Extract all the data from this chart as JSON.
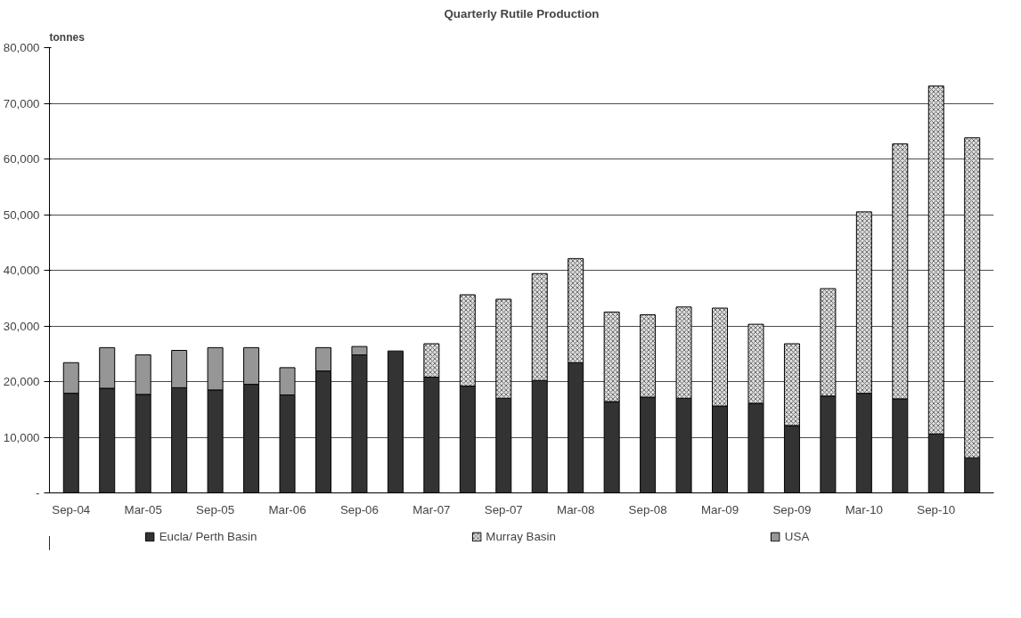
{
  "chart_data": {
    "type": "bar",
    "title": "Quarterly Rutile Production",
    "ylabel": "tonnes",
    "stacked": true,
    "categories": [
      "Sep-04",
      null,
      "Mar-05",
      null,
      "Sep-05",
      null,
      "Mar-06",
      null,
      "Sep-06",
      null,
      "Mar-07",
      null,
      "Sep-07",
      null,
      "Mar-08",
      null,
      "Sep-08",
      null,
      "Mar-09",
      null,
      "Sep-09",
      null,
      "Mar-10",
      null,
      "Sep-10",
      null
    ],
    "series": [
      {
        "name": "Eucla/ Perth Basin",
        "color": "#333333",
        "values": [
          17900,
          18800,
          17700,
          18900,
          18500,
          19500,
          17600,
          21900,
          24800,
          25500,
          20800,
          19200,
          17000,
          20200,
          23400,
          16400,
          17200,
          17000,
          15600,
          16100,
          12100,
          17400,
          17900,
          16900,
          10600,
          6300
        ]
      },
      {
        "name": "Murray Basin",
        "color": "#dddddd",
        "values": [
          null,
          null,
          null,
          null,
          null,
          null,
          null,
          null,
          null,
          null,
          6000,
          16400,
          17800,
          19200,
          18700,
          16100,
          14800,
          16400,
          17600,
          14200,
          14700,
          19300,
          32600,
          45800,
          62500,
          57500
        ]
      },
      {
        "name": "USA",
        "color": "#969696",
        "values": [
          5500,
          7300,
          7100,
          6700,
          7600,
          6600,
          4900,
          4200,
          1500,
          null,
          null,
          null,
          null,
          null,
          null,
          null,
          null,
          null,
          null,
          null,
          null,
          null,
          null,
          null,
          null,
          null
        ]
      }
    ],
    "ylim": [
      0,
      80000
    ],
    "yticks": [
      {
        "value": 0,
        "label": "-"
      },
      {
        "value": 10000,
        "label": "10,000"
      },
      {
        "value": 20000,
        "label": "20,000"
      },
      {
        "value": 30000,
        "label": "30,000"
      },
      {
        "value": 40000,
        "label": "40,000"
      },
      {
        "value": 50000,
        "label": "50,000"
      },
      {
        "value": 60000,
        "label": "60,000"
      },
      {
        "value": 70000,
        "label": "70,000"
      },
      {
        "value": 80000,
        "label": "80,000"
      }
    ],
    "grid": "y",
    "legend": "bottom"
  }
}
